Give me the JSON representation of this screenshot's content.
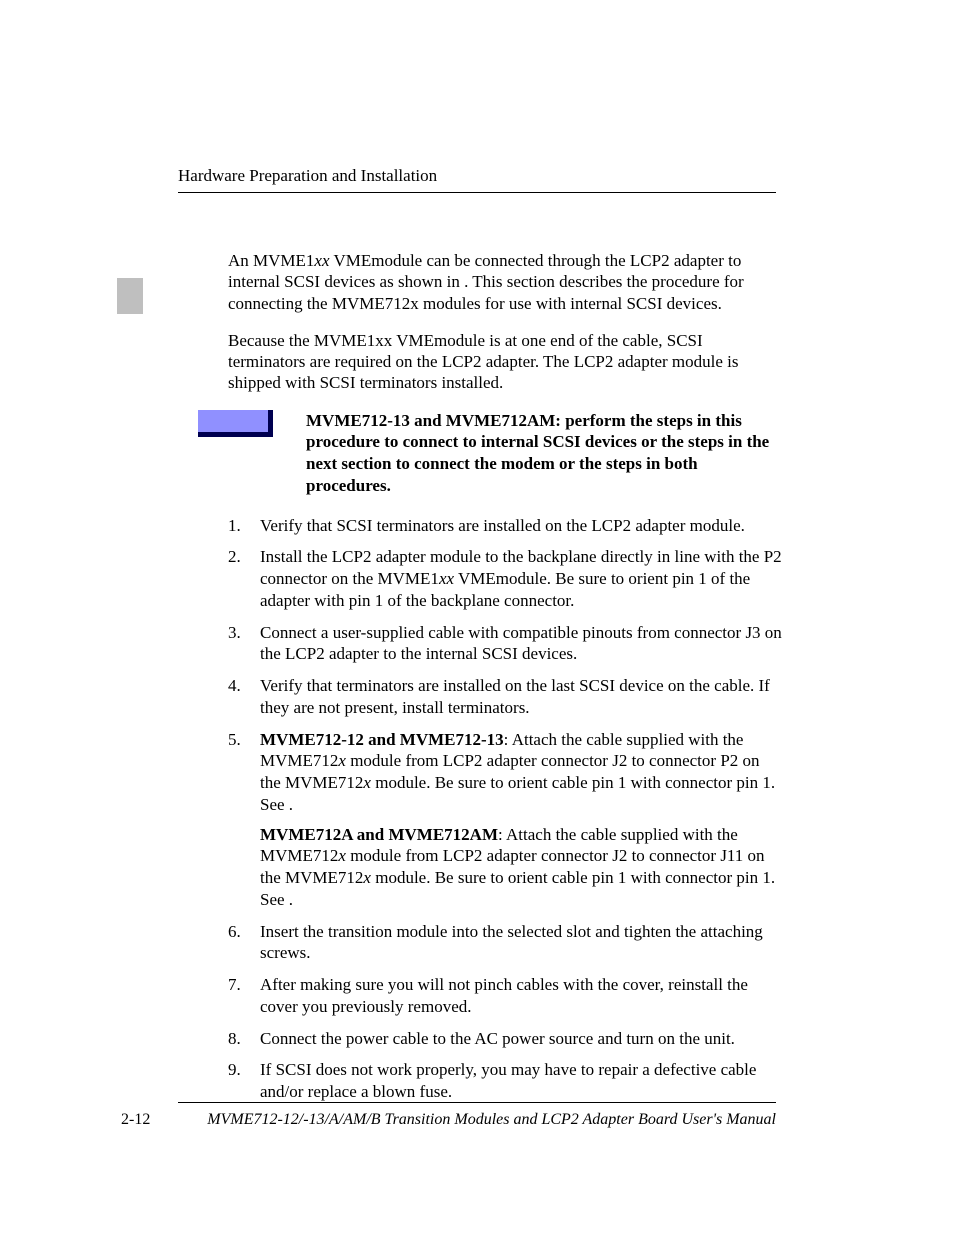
{
  "header": {
    "running_title": "Hardware Preparation and Installation"
  },
  "body": {
    "para1_a": "An MVME1",
    "para1_b": "xx",
    "para1_c": " VMEmodule can be connected through the LCP2 adapter to internal SCSI devices as shown in                  . This section describes the procedure for connecting the MVME712x modules for use with internal SCSI devices.",
    "para2": "Because the MVME1xx VMEmodule is at one end of the cable, SCSI terminators are required on the LCP2 adapter. The LCP2 adapter module is shipped with SCSI terminators installed.",
    "note": "MVME712-13 and MVME712AM: perform the steps in this procedure to connect to internal SCSI devices or the steps in the next section to connect the modem or the steps in both procedures.",
    "steps": [
      {
        "n": "1.",
        "text": "Verify that SCSI terminators are installed on the LCP2 adapter module."
      },
      {
        "n": "2.",
        "text_a": "Install the LCP2 adapter module to the backplane directly in line with the P2 connector on the MVME1",
        "text_b": "xx",
        "text_c": " VMEmodule. Be sure to orient pin 1 of the adapter with pin 1 of the backplane connector."
      },
      {
        "n": "3.",
        "text": "Connect a user-supplied cable with compatible pinouts from connector J3 on the LCP2 adapter to the internal SCSI devices."
      },
      {
        "n": "4.",
        "text": "Verify that terminators are installed on the last SCSI device on the cable. If they are not present, install terminators."
      },
      {
        "n": "5.",
        "p1_bold": "MVME712-12 and MVME712-13",
        "p1_a": ": Attach the cable supplied with the MVME712",
        "p1_b": "x",
        "p1_c": " module from LCP2 adapter connector J2 to connector P2 on the MVME712",
        "p1_d": "x",
        "p1_e": " module. Be sure to orient cable pin 1 with connector pin 1. See                  .",
        "p2_bold": "MVME712A and MVME712AM",
        "p2_a": ": Attach the cable supplied with the MVME712",
        "p2_b": "x",
        "p2_c": " module from LCP2 adapter connector J2 to connector J11 on the MVME712",
        "p2_d": "x",
        "p2_e": " module. Be sure to orient cable pin 1 with connector pin 1. See                  ."
      },
      {
        "n": "6.",
        "text": "Insert the transition module into the selected slot and tighten the attaching screws."
      },
      {
        "n": "7.",
        "text": "After making sure you will not pinch cables with the cover, reinstall the cover you previously removed."
      },
      {
        "n": "8.",
        "text": "Connect the power cable to the AC power source and turn on the unit."
      },
      {
        "n": "9.",
        "text": "If SCSI does not work properly, you may have to repair a defective cable and/or replace a blown fuse."
      }
    ]
  },
  "footer": {
    "page": "2-12",
    "title": "MVME712-12/-13/A/AM/B Transition Modules and LCP2 Adapter Board User's Manual"
  },
  "colors": {
    "text": "#000000",
    "background": "#ffffff",
    "side_tab": "#bfbfbf",
    "note_fill": "#9090ff",
    "note_shadow": "#000050"
  },
  "typography": {
    "body_fontsize_pt": 12,
    "font_family": "Palatino"
  }
}
